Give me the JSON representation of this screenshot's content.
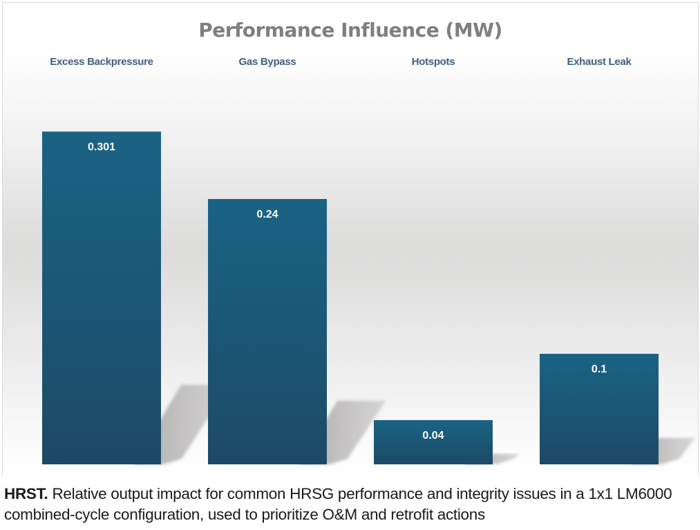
{
  "chart_data": {
    "type": "bar",
    "title": "Performance Influence (MW)",
    "categories": [
      "Excess Backpressure",
      "Gas Bypass",
      "Hotspots",
      "Exhaust Leak"
    ],
    "values": [
      0.301,
      0.24,
      0.04,
      0.1
    ],
    "data_labels": [
      "0.301",
      "0.24",
      "0.04",
      "0.1"
    ],
    "xlabel": "",
    "ylabel": "",
    "ylim": [
      0,
      0.35
    ],
    "category_labels_position": "top",
    "grid": false,
    "legend": "none",
    "colors": {
      "bar_top": "#1a6384",
      "bar_bottom": "#1c4a66",
      "title": "#7f7f7f",
      "category": "#3f5f80",
      "label": "#ffffff"
    }
  },
  "caption": {
    "lead": "HRST.",
    "text": " Relative output impact for common HRSG performance and integrity issues in a 1x1 LM6000 combined-cycle configuration, used to prioritize O&M and retrofit actions"
  }
}
